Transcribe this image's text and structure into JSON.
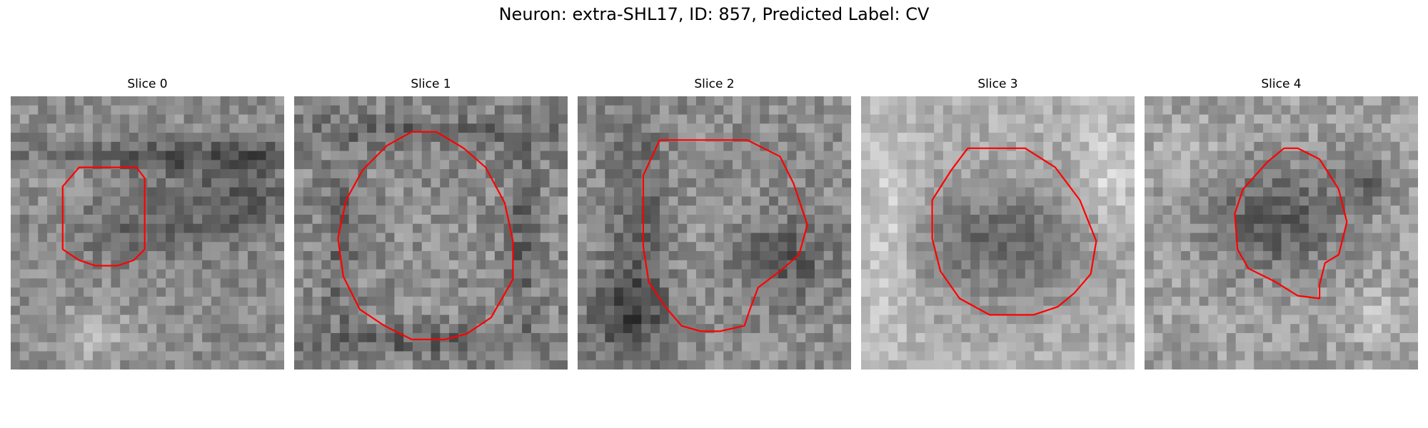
{
  "figure": {
    "title": "Neuron: extra-SHL17, ID: 857, Predicted Label: CV",
    "outline_color": "#ff0000",
    "image_colormap": "grayscale",
    "grid_size": 30
  },
  "panels": [
    {
      "title": "Slice 0",
      "mean_gray": 140,
      "contrast": 60,
      "seed": 11,
      "dark_features": [
        [
          0.55,
          0.45,
          0.35,
          0.15,
          40
        ],
        [
          0.68,
          0.22,
          0.62,
          0.06,
          60
        ],
        [
          0.85,
          0.35,
          0.15,
          0.1,
          40
        ]
      ],
      "light_features": [
        [
          0.25,
          0.3,
          0.2,
          0.12,
          20
        ],
        [
          0.32,
          0.88,
          0.15,
          0.1,
          40
        ]
      ],
      "outline": [
        [
          0.39,
          0.26
        ],
        [
          0.46,
          0.26
        ],
        [
          0.49,
          0.3
        ],
        [
          0.49,
          0.56
        ],
        [
          0.45,
          0.6
        ],
        [
          0.39,
          0.62
        ],
        [
          0.31,
          0.62
        ],
        [
          0.25,
          0.6
        ],
        [
          0.19,
          0.56
        ],
        [
          0.19,
          0.33
        ],
        [
          0.25,
          0.26
        ],
        [
          0.39,
          0.26
        ]
      ]
    },
    {
      "title": "Slice 1",
      "mean_gray": 135,
      "contrast": 70,
      "seed": 23,
      "dark_features": [
        [
          0.5,
          0.13,
          0.45,
          0.05,
          40
        ],
        [
          0.5,
          0.9,
          0.45,
          0.05,
          40
        ],
        [
          0.17,
          0.5,
          0.05,
          0.35,
          40
        ],
        [
          0.83,
          0.5,
          0.05,
          0.35,
          40
        ]
      ],
      "light_features": [
        [
          0.5,
          0.5,
          0.3,
          0.3,
          10
        ]
      ],
      "outline": [
        [
          0.43,
          0.13
        ],
        [
          0.52,
          0.13
        ],
        [
          0.62,
          0.19
        ],
        [
          0.7,
          0.26
        ],
        [
          0.77,
          0.39
        ],
        [
          0.8,
          0.53
        ],
        [
          0.8,
          0.67
        ],
        [
          0.72,
          0.81
        ],
        [
          0.63,
          0.87
        ],
        [
          0.55,
          0.89
        ],
        [
          0.43,
          0.89
        ],
        [
          0.33,
          0.84
        ],
        [
          0.24,
          0.78
        ],
        [
          0.18,
          0.66
        ],
        [
          0.16,
          0.52
        ],
        [
          0.19,
          0.38
        ],
        [
          0.25,
          0.27
        ],
        [
          0.34,
          0.18
        ],
        [
          0.43,
          0.13
        ]
      ]
    },
    {
      "title": "Slice 2",
      "mean_gray": 140,
      "contrast": 65,
      "seed": 37,
      "dark_features": [
        [
          0.22,
          0.45,
          0.1,
          0.35,
          50
        ],
        [
          0.18,
          0.8,
          0.15,
          0.15,
          60
        ],
        [
          0.75,
          0.6,
          0.18,
          0.15,
          50
        ]
      ],
      "light_features": [
        [
          0.4,
          0.55,
          0.18,
          0.18,
          10
        ]
      ],
      "outline": [
        [
          0.3,
          0.16
        ],
        [
          0.62,
          0.16
        ],
        [
          0.74,
          0.22
        ],
        [
          0.79,
          0.32
        ],
        [
          0.84,
          0.47
        ],
        [
          0.81,
          0.58
        ],
        [
          0.74,
          0.64
        ],
        [
          0.66,
          0.7
        ],
        [
          0.63,
          0.78
        ],
        [
          0.61,
          0.84
        ],
        [
          0.52,
          0.86
        ],
        [
          0.45,
          0.86
        ],
        [
          0.38,
          0.84
        ],
        [
          0.32,
          0.77
        ],
        [
          0.26,
          0.68
        ],
        [
          0.24,
          0.55
        ],
        [
          0.24,
          0.4
        ],
        [
          0.24,
          0.29
        ],
        [
          0.3,
          0.16
        ]
      ]
    },
    {
      "title": "Slice 3",
      "mean_gray": 175,
      "contrast": 50,
      "seed": 51,
      "dark_features": [
        [
          0.52,
          0.55,
          0.32,
          0.22,
          80
        ]
      ],
      "light_features": [
        [
          0.52,
          0.62,
          0.14,
          0.1,
          20
        ],
        [
          0.1,
          0.5,
          0.1,
          0.4,
          40
        ],
        [
          0.9,
          0.3,
          0.1,
          0.2,
          40
        ]
      ],
      "outline": [
        [
          0.39,
          0.19
        ],
        [
          0.6,
          0.19
        ],
        [
          0.71,
          0.26
        ],
        [
          0.8,
          0.38
        ],
        [
          0.86,
          0.53
        ],
        [
          0.84,
          0.65
        ],
        [
          0.78,
          0.72
        ],
        [
          0.72,
          0.77
        ],
        [
          0.63,
          0.8
        ],
        [
          0.47,
          0.8
        ],
        [
          0.36,
          0.74
        ],
        [
          0.29,
          0.64
        ],
        [
          0.26,
          0.52
        ],
        [
          0.26,
          0.38
        ],
        [
          0.33,
          0.27
        ],
        [
          0.39,
          0.19
        ]
      ]
    },
    {
      "title": "Slice 4",
      "mean_gray": 160,
      "contrast": 60,
      "seed": 67,
      "dark_features": [
        [
          0.48,
          0.45,
          0.25,
          0.2,
          70
        ],
        [
          0.8,
          0.3,
          0.1,
          0.1,
          50
        ]
      ],
      "light_features": [
        [
          0.15,
          0.2,
          0.12,
          0.1,
          20
        ],
        [
          0.85,
          0.8,
          0.1,
          0.1,
          30
        ]
      ],
      "outline": [
        [
          0.51,
          0.19
        ],
        [
          0.56,
          0.19
        ],
        [
          0.64,
          0.23
        ],
        [
          0.71,
          0.34
        ],
        [
          0.74,
          0.46
        ],
        [
          0.71,
          0.58
        ],
        [
          0.66,
          0.61
        ],
        [
          0.64,
          0.69
        ],
        [
          0.64,
          0.74
        ],
        [
          0.56,
          0.73
        ],
        [
          0.48,
          0.68
        ],
        [
          0.38,
          0.63
        ],
        [
          0.34,
          0.56
        ],
        [
          0.33,
          0.43
        ],
        [
          0.36,
          0.34
        ],
        [
          0.45,
          0.24
        ],
        [
          0.51,
          0.19
        ]
      ]
    }
  ]
}
